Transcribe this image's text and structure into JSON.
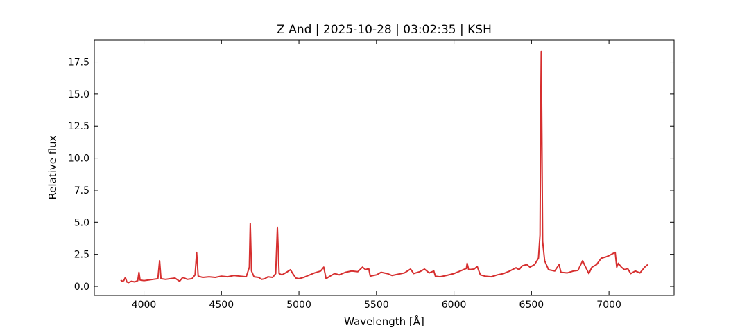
{
  "chart_data": {
    "type": "line",
    "title": "Z And | 2025-10-28 | 03:02:35 | KSH",
    "xlabel": "Wavelength [Å]",
    "ylabel": "Relative flux",
    "color": "#d62f2f",
    "xlim": [
      3680,
      7420
    ],
    "ylim": [
      -0.7,
      19.2
    ],
    "xticks": [
      4000,
      4500,
      5000,
      5500,
      6000,
      6500,
      7000
    ],
    "yticks": [
      {
        "value": 0,
        "label": "0.0"
      },
      2.5,
      {
        "value": 5,
        "label": "5.0"
      },
      7.5,
      {
        "value": 10,
        "label": "10.0"
      },
      12.5,
      {
        "value": 15,
        "label": "15.0"
      },
      17.5
    ],
    "grid": false,
    "x": [
      3850,
      3860,
      3870,
      3880,
      3890,
      3900,
      3920,
      3940,
      3960,
      3968,
      3975,
      4000,
      4030,
      4060,
      4090,
      4101,
      4110,
      4140,
      4170,
      4200,
      4230,
      4250,
      4280,
      4310,
      4330,
      4340,
      4350,
      4380,
      4420,
      4460,
      4500,
      4540,
      4580,
      4620,
      4660,
      4680,
      4686,
      4694,
      4710,
      4740,
      4760,
      4780,
      4800,
      4830,
      4850,
      4861,
      4872,
      4890,
      4920,
      4945,
      4960,
      4980,
      5000,
      5030,
      5060,
      5100,
      5140,
      5160,
      5175,
      5200,
      5230,
      5260,
      5300,
      5340,
      5380,
      5410,
      5430,
      5450,
      5460,
      5500,
      5530,
      5570,
      5600,
      5640,
      5680,
      5720,
      5740,
      5780,
      5810,
      5840,
      5870,
      5880,
      5910,
      5950,
      6000,
      6040,
      6080,
      6085,
      6095,
      6130,
      6150,
      6170,
      6200,
      6240,
      6280,
      6320,
      6360,
      6400,
      6420,
      6440,
      6470,
      6490,
      6520,
      6545,
      6555,
      6560,
      6563,
      6567,
      6572,
      6585,
      6610,
      6650,
      6678,
      6690,
      6730,
      6770,
      6800,
      6830,
      6845,
      6870,
      6890,
      6920,
      6950,
      6980,
      7000,
      7040,
      7050,
      7060,
      7080,
      7100,
      7120,
      7140,
      7170,
      7200,
      7230,
      7250
    ],
    "values": [
      0.5,
      0.4,
      0.45,
      0.7,
      0.35,
      0.3,
      0.4,
      0.35,
      0.45,
      1.1,
      0.5,
      0.45,
      0.5,
      0.55,
      0.6,
      2.0,
      0.6,
      0.55,
      0.6,
      0.65,
      0.4,
      0.7,
      0.55,
      0.6,
      0.9,
      2.65,
      0.8,
      0.7,
      0.75,
      0.7,
      0.8,
      0.75,
      0.85,
      0.8,
      0.75,
      1.5,
      4.9,
      1.2,
      0.75,
      0.7,
      0.55,
      0.6,
      0.75,
      0.7,
      1.0,
      4.6,
      1.0,
      0.9,
      1.1,
      1.3,
      1.0,
      0.65,
      0.6,
      0.7,
      0.85,
      1.05,
      1.2,
      1.5,
      0.6,
      0.8,
      1.0,
      0.9,
      1.1,
      1.2,
      1.15,
      1.5,
      1.3,
      1.4,
      0.8,
      0.9,
      1.1,
      1.0,
      0.85,
      0.95,
      1.05,
      1.35,
      1.0,
      1.15,
      1.35,
      1.05,
      1.2,
      0.8,
      0.75,
      0.85,
      1.0,
      1.2,
      1.4,
      1.8,
      1.3,
      1.35,
      1.55,
      0.9,
      0.8,
      0.75,
      0.9,
      1.0,
      1.2,
      1.45,
      1.3,
      1.6,
      1.7,
      1.5,
      1.7,
      2.2,
      4.0,
      14.0,
      18.3,
      12.0,
      3.5,
      2.0,
      1.3,
      1.2,
      1.7,
      1.1,
      1.05,
      1.2,
      1.25,
      2.0,
      1.6,
      1.0,
      1.5,
      1.7,
      2.2,
      2.3,
      2.4,
      2.65,
      1.5,
      1.8,
      1.5,
      1.3,
      1.4,
      1.0,
      1.2,
      1.05,
      1.5,
      1.7
    ]
  }
}
